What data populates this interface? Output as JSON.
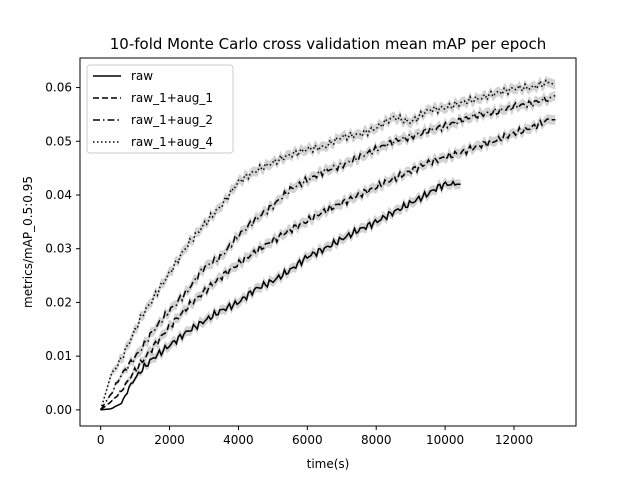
{
  "chart_data": {
    "type": "line",
    "title": "10-fold Monte Carlo cross validation mean mAP per epoch",
    "xlabel": "time(s)",
    "ylabel": "metrics/mAP_0.5:0.95",
    "xlim": [
      -600,
      13800
    ],
    "ylim": [
      -0.003,
      0.0655
    ],
    "x_ticks": [
      0,
      2000,
      4000,
      6000,
      8000,
      10000,
      12000
    ],
    "x_tick_labels": [
      "0",
      "2000",
      "4000",
      "6000",
      "8000",
      "10000",
      "12000"
    ],
    "y_ticks": [
      0.0,
      0.01,
      0.02,
      0.03,
      0.04,
      0.05,
      0.06
    ],
    "y_tick_labels": [
      "0.00",
      "0.01",
      "0.02",
      "0.03",
      "0.04",
      "0.05",
      "0.06"
    ],
    "legend_position": "top-left",
    "band_color": "#d3d3d3",
    "line_color": "#000000",
    "series": [
      {
        "name": "raw",
        "dash": "solid",
        "x": [
          0,
          300,
          600,
          900,
          1200,
          1500,
          2000,
          2500,
          3000,
          3500,
          4000,
          4500,
          5000,
          5500,
          6000,
          6500,
          7000,
          7500,
          8000,
          8500,
          9000,
          9500,
          9800,
          10000,
          10200,
          10500
        ],
        "y": [
          0.0,
          0.0002,
          0.0012,
          0.005,
          0.0075,
          0.0095,
          0.012,
          0.0145,
          0.0165,
          0.0185,
          0.02,
          0.0225,
          0.024,
          0.026,
          0.0285,
          0.03,
          0.0318,
          0.0335,
          0.035,
          0.0368,
          0.0385,
          0.0402,
          0.0415,
          0.042,
          0.042,
          0.042
        ]
      },
      {
        "name": "raw_1+aug_1",
        "dash": "dashed",
        "x": [
          0,
          300,
          600,
          900,
          1200,
          1500,
          2000,
          2500,
          3000,
          3500,
          4000,
          4500,
          5000,
          5500,
          6000,
          6500,
          7000,
          7500,
          8000,
          8500,
          9000,
          9500,
          10000,
          10500,
          11000,
          11500,
          12000,
          12500,
          13000,
          13200
        ],
        "y": [
          0.0,
          0.0015,
          0.0035,
          0.0065,
          0.009,
          0.0115,
          0.0155,
          0.019,
          0.022,
          0.0248,
          0.0272,
          0.0295,
          0.0315,
          0.0335,
          0.0352,
          0.037,
          0.0385,
          0.04,
          0.0415,
          0.043,
          0.0445,
          0.046,
          0.047,
          0.048,
          0.0492,
          0.0502,
          0.0515,
          0.0525,
          0.054,
          0.054
        ]
      },
      {
        "name": "raw_1+aug_2",
        "dash": "dashdot",
        "x": [
          0,
          300,
          600,
          900,
          1200,
          1500,
          2000,
          2500,
          3000,
          3500,
          4000,
          4500,
          5000,
          5500,
          6000,
          6500,
          7000,
          7500,
          8000,
          8500,
          9000,
          9500,
          10000,
          10500,
          11000,
          11500,
          12000,
          12500,
          13000,
          13200
        ],
        "y": [
          0.0,
          0.003,
          0.0065,
          0.009,
          0.0115,
          0.0145,
          0.0185,
          0.022,
          0.0265,
          0.0285,
          0.0325,
          0.0355,
          0.038,
          0.041,
          0.0428,
          0.0445,
          0.0455,
          0.047,
          0.0485,
          0.05,
          0.0508,
          0.052,
          0.0528,
          0.054,
          0.055,
          0.0555,
          0.0565,
          0.057,
          0.058,
          0.0585
        ]
      },
      {
        "name": "raw_1+aug_4",
        "dash": "dotted",
        "x": [
          0,
          300,
          600,
          900,
          1200,
          1500,
          2000,
          2500,
          3000,
          3500,
          4000,
          4500,
          5000,
          5500,
          6000,
          6500,
          7000,
          7500,
          8000,
          8500,
          9000,
          9500,
          10000,
          10500,
          11000,
          11500,
          12000,
          12500,
          13000,
          13200
        ],
        "y": [
          0.0,
          0.0065,
          0.0095,
          0.0135,
          0.0175,
          0.0205,
          0.0255,
          0.0305,
          0.0345,
          0.038,
          0.0425,
          0.0445,
          0.046,
          0.0475,
          0.0485,
          0.049,
          0.0508,
          0.0512,
          0.0525,
          0.0545,
          0.0535,
          0.0558,
          0.0562,
          0.0572,
          0.058,
          0.059,
          0.0598,
          0.06,
          0.061,
          0.0605
        ]
      }
    ]
  }
}
